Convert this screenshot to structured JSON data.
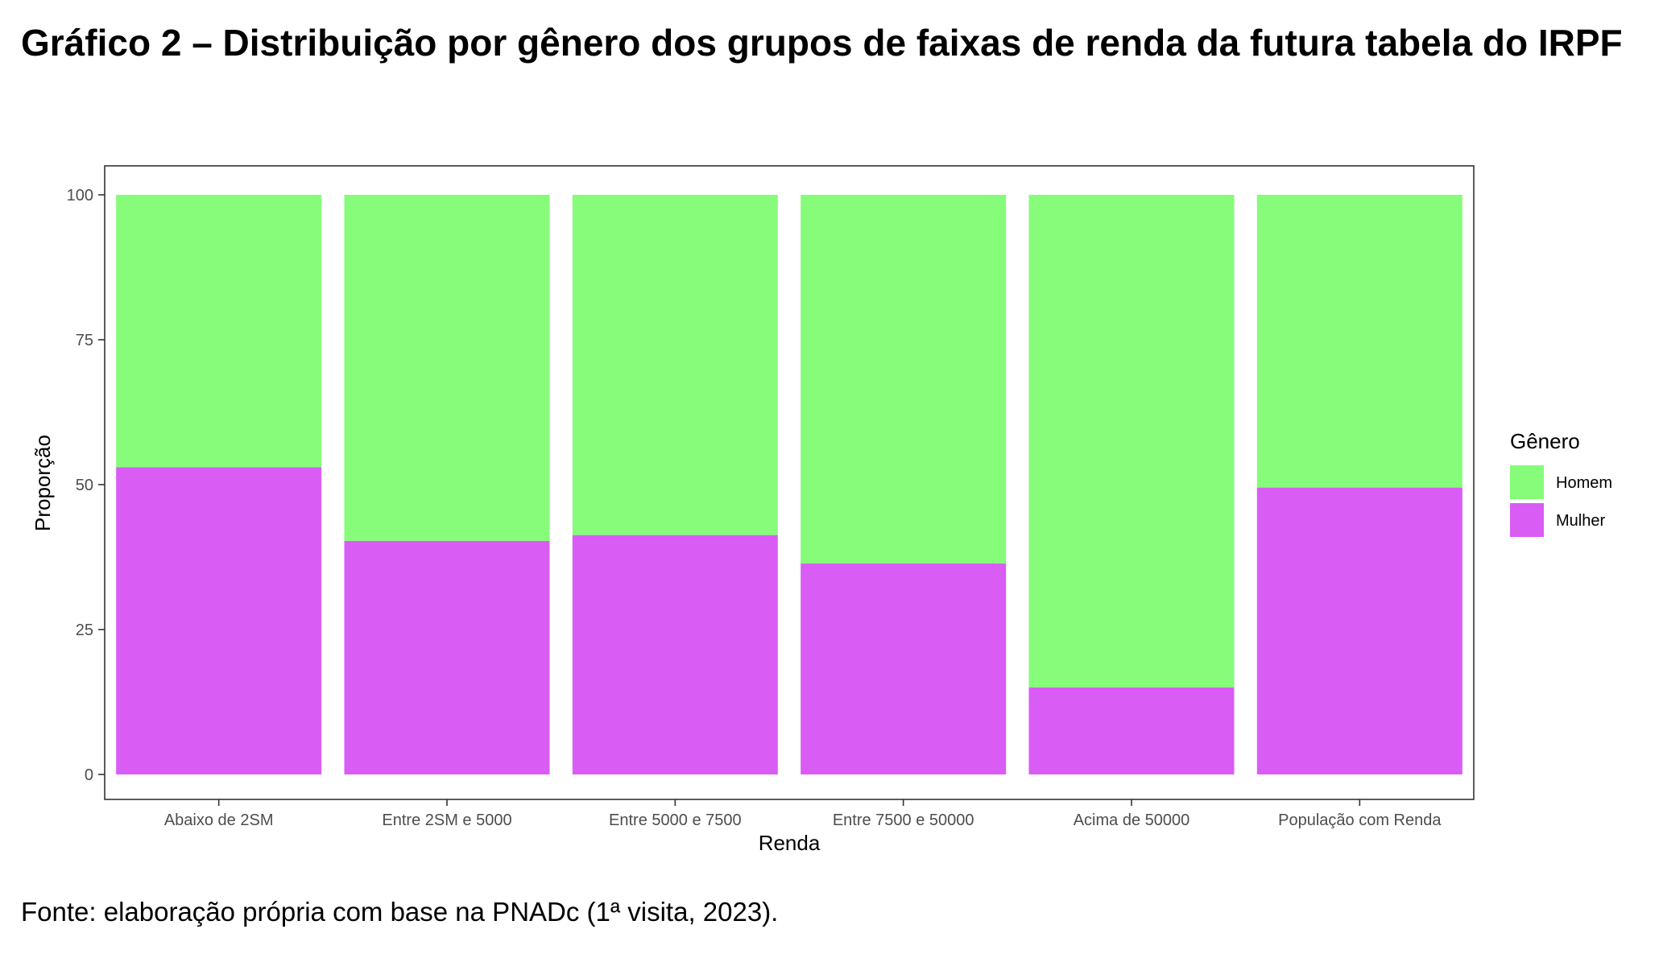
{
  "title": "Gráfico 2 – Distribuição por gênero dos grupos de faixas de renda da futura tabela do IRPF",
  "source": "Fonte: elaboração própria com base na PNADc (1ª visita, 2023).",
  "colors": {
    "Homem": "#86fc7a",
    "Mulher": "#d95cf5"
  },
  "chart_data": {
    "type": "bar",
    "stacked": true,
    "categories": [
      "Abaixo de 2SM",
      "Entre 2SM e 5000",
      "Entre 5000 e 7500",
      "Entre 7500 e 50000",
      "Acima de 50000",
      "População com Renda"
    ],
    "series": [
      {
        "name": "Mulher",
        "values": [
          53,
          40.3,
          41.3,
          36.4,
          15,
          49.5
        ]
      },
      {
        "name": "Homem",
        "values": [
          47,
          59.7,
          58.7,
          63.6,
          85,
          50.5
        ]
      }
    ],
    "xlabel": "Renda",
    "ylabel": "Proporção",
    "ylim": [
      0,
      100
    ],
    "yticks": [
      "0",
      "25",
      "50",
      "75",
      "100"
    ],
    "legend": {
      "title": "Gênero",
      "entries": [
        "Homem",
        "Mulher"
      ],
      "position": "right"
    },
    "grid": false
  }
}
